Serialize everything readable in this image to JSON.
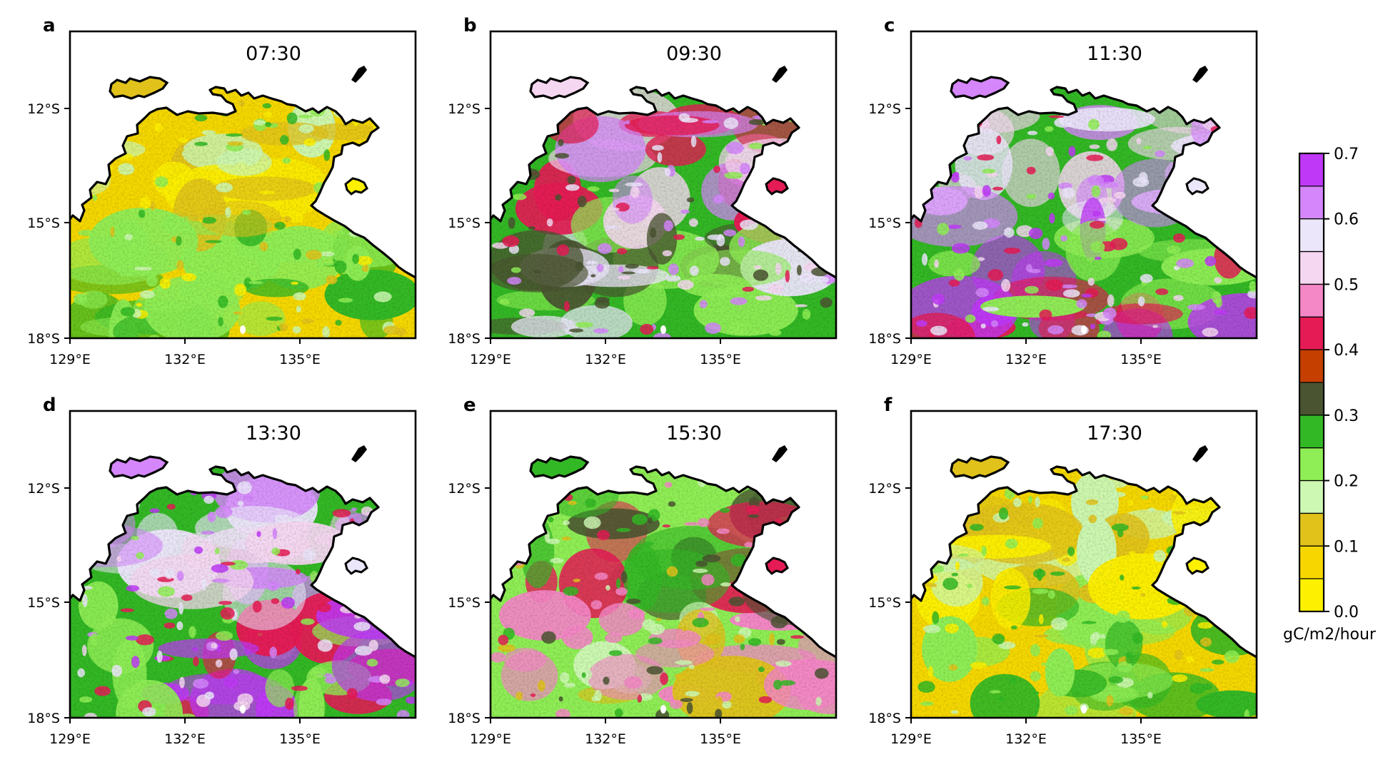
{
  "panels": [
    {
      "letter": "a",
      "time": "07:30",
      "theme": "yellow"
    },
    {
      "letter": "b",
      "time": "09:30",
      "theme": "pink"
    },
    {
      "letter": "c",
      "time": "11:30",
      "theme": "violet"
    },
    {
      "letter": "d",
      "time": "13:30",
      "theme": "violet"
    },
    {
      "letter": "e",
      "time": "15:30",
      "theme": "red"
    },
    {
      "letter": "f",
      "time": "17:30",
      "theme": "yellow"
    }
  ],
  "axes": {
    "lat_ticks": [
      "12°S",
      "15°S",
      "18°S"
    ],
    "lon_ticks": [
      "129°E",
      "132°E",
      "135°E"
    ]
  },
  "colorbar": {
    "unit_label": "gC/m2/hour",
    "tick_labels": [
      "0.0",
      "0.1",
      "0.2",
      "0.3",
      "0.4",
      "0.5",
      "0.6",
      "0.7"
    ],
    "range": [
      0.0,
      0.7
    ],
    "colors": [
      "#fdf000",
      "#f7d600",
      "#e0c21b",
      "#ccf8b3",
      "#8fee55",
      "#33b825",
      "#4a5431",
      "#c53f00",
      "#e51b55",
      "#f487c6",
      "#f6d7f1",
      "#ece6fb",
      "#d586fb",
      "#bf38f7"
    ]
  }
}
